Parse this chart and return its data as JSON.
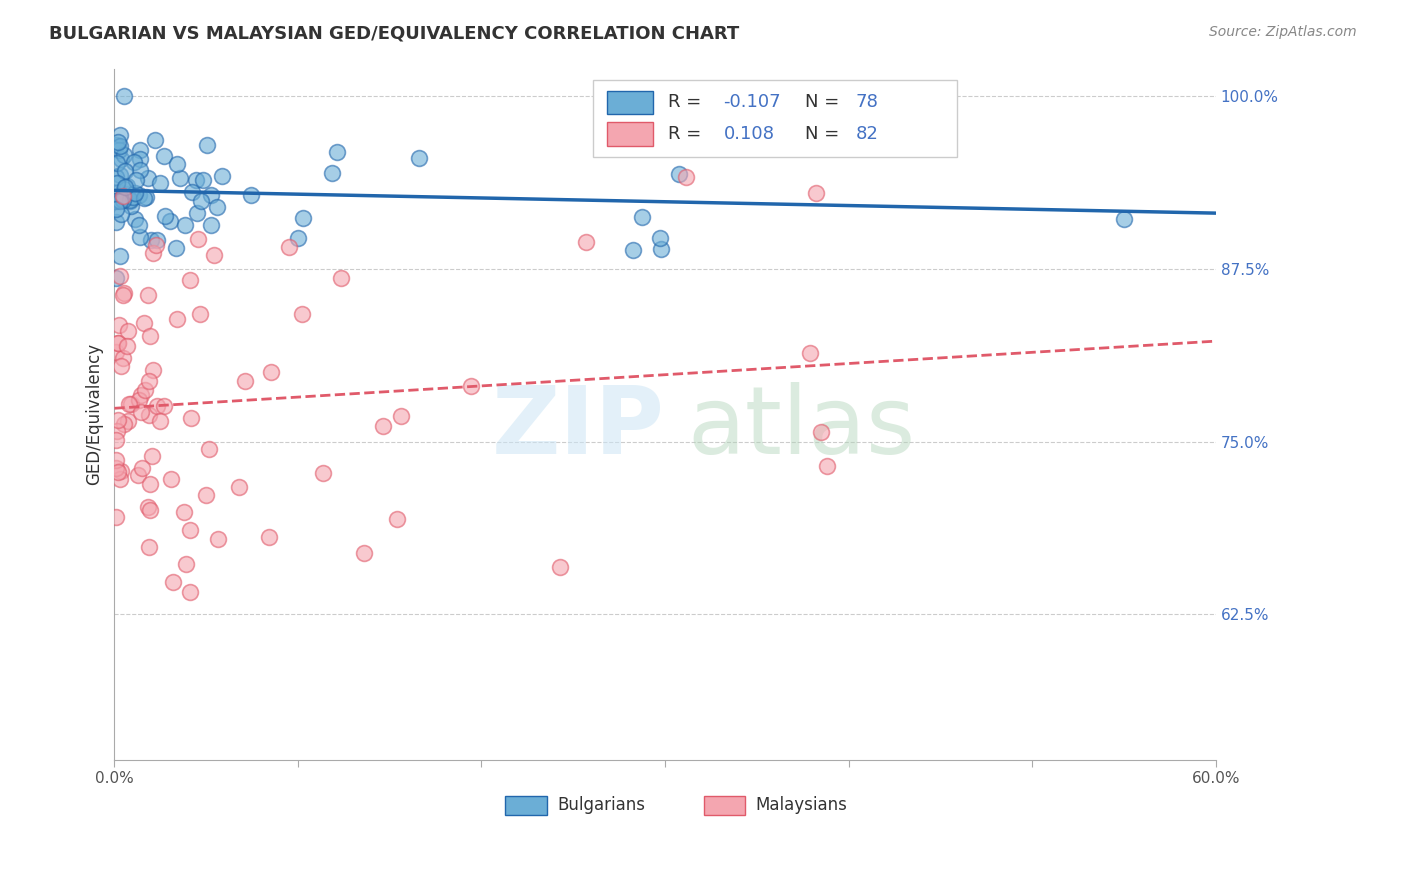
{
  "title": "BULGARIAN VS MALAYSIAN GED/EQUIVALENCY CORRELATION CHART",
  "source": "Source: ZipAtlas.com",
  "ylabel": "GED/Equivalency",
  "xlim": [
    0.0,
    0.6
  ],
  "ylim": [
    0.52,
    1.02
  ],
  "xticks": [
    0.0,
    0.1,
    0.2,
    0.3,
    0.4,
    0.5,
    0.6
  ],
  "xticklabels": [
    "0.0%",
    "",
    "",
    "",
    "",
    "",
    "60.0%"
  ],
  "yticks": [
    0.625,
    0.75,
    0.875,
    1.0
  ],
  "yticklabels": [
    "62.5%",
    "75.0%",
    "87.5%",
    "100.0%"
  ],
  "blue_color": "#6baed6",
  "pink_color": "#f4a6b0",
  "blue_line_color": "#2166ac",
  "pink_line_color": "#e05a6a",
  "blue_r": "-0.107",
  "blue_n": "78",
  "pink_r": "0.108",
  "pink_n": "82"
}
